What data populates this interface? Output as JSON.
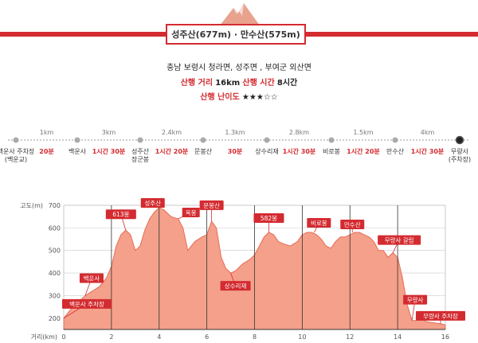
{
  "header": {
    "title": "성주산(677m) · 만수산(575m)",
    "location": "충남 보령시 청라면, 성주면 , 부여군 외산면",
    "distance_label": "산행 거리",
    "distance_value": "16km",
    "time_label": "산행 시간",
    "time_value": "8시간",
    "difficulty_label": "산행 난이도",
    "difficulty_stars": "★★★☆☆"
  },
  "route": {
    "stops": [
      {
        "name": [
          "백운사 주차장",
          "(백운교)"
        ]
      },
      {
        "name": [
          "백운사"
        ]
      },
      {
        "name": [
          "성주산",
          "장군봉"
        ]
      },
      {
        "name": [
          "문봉산"
        ]
      },
      {
        "name": [
          "상수리재"
        ]
      },
      {
        "name": [
          "비로봉"
        ]
      },
      {
        "name": [
          "만수산"
        ]
      },
      {
        "name": [
          "무량사",
          "(주차장)"
        ]
      }
    ],
    "segments": [
      {
        "dist": "1km",
        "time": "20분"
      },
      {
        "dist": "3km",
        "time": "1시간 30분"
      },
      {
        "dist": "2.4km",
        "time": "1시간 20분"
      },
      {
        "dist": "1.3km",
        "time": "30분"
      },
      {
        "dist": "2.8km",
        "time": "1시간 30분"
      },
      {
        "dist": "1.5km",
        "time": "1시간 20분"
      },
      {
        "dist": "4km",
        "time": "1시간 30분"
      }
    ]
  },
  "colors": {
    "accent": "#d32b30",
    "profile_fill": "#f4a08a",
    "profile_stroke": "#e56d56"
  },
  "chart_data": {
    "type": "area",
    "ylabel": "고도(m)",
    "xlabel": "거리(km)",
    "xlim": [
      0,
      16
    ],
    "ylim": [
      150,
      700
    ],
    "xticks": [
      0,
      2,
      4,
      6,
      8,
      10,
      12,
      14,
      16
    ],
    "yticks": [
      200,
      300,
      400,
      500,
      600,
      700
    ],
    "x": [
      0,
      0.3,
      0.6,
      0.9,
      1.2,
      1.5,
      1.8,
      2.0,
      2.2,
      2.4,
      2.6,
      2.8,
      3.0,
      3.2,
      3.4,
      3.6,
      3.8,
      4.0,
      4.2,
      4.5,
      4.8,
      5.0,
      5.2,
      5.5,
      5.8,
      6.0,
      6.2,
      6.4,
      6.6,
      6.8,
      7.0,
      7.2,
      7.5,
      7.8,
      8.0,
      8.2,
      8.4,
      8.6,
      8.8,
      9.0,
      9.2,
      9.5,
      9.8,
      10.0,
      10.2,
      10.4,
      10.6,
      10.8,
      11.0,
      11.2,
      11.4,
      11.6,
      11.8,
      12.0,
      12.2,
      12.4,
      12.6,
      12.8,
      13.0,
      13.2,
      13.4,
      13.6,
      13.8,
      14.0,
      14.2,
      14.4,
      14.6,
      14.8,
      15.0,
      15.2,
      15.5,
      15.8,
      16.0
    ],
    "y": [
      200,
      240,
      270,
      300,
      320,
      340,
      380,
      430,
      520,
      570,
      590,
      570,
      500,
      520,
      590,
      640,
      670,
      690,
      680,
      650,
      640,
      600,
      500,
      540,
      560,
      570,
      630,
      600,
      470,
      420,
      400,
      410,
      440,
      460,
      480,
      520,
      560,
      580,
      570,
      540,
      530,
      520,
      540,
      570,
      580,
      580,
      570,
      550,
      520,
      510,
      540,
      560,
      560,
      570,
      580,
      580,
      570,
      560,
      540,
      500,
      500,
      470,
      490,
      470,
      380,
      260,
      190,
      190,
      200,
      185,
      180,
      175,
      170
    ],
    "annotations": [
      {
        "text": "백운사 주차장",
        "x": 0,
        "y": 200
      },
      {
        "text": "백운사",
        "x": 0.9,
        "y": 300
      },
      {
        "text": "613봉",
        "x": 2.6,
        "y": 590
      },
      {
        "text": "성주산",
        "x": 4.0,
        "y": 690
      },
      {
        "text": "옥봉",
        "x": 4.8,
        "y": 640
      },
      {
        "text": "문봉산",
        "x": 6.2,
        "y": 630
      },
      {
        "text": "상수리재",
        "x": 7.0,
        "y": 400
      },
      {
        "text": "582봉",
        "x": 8.6,
        "y": 580
      },
      {
        "text": "비로봉",
        "x": 10.5,
        "y": 580
      },
      {
        "text": "만수산",
        "x": 12.1,
        "y": 580
      },
      {
        "text": "무량사 갈림",
        "x": 13.8,
        "y": 490
      },
      {
        "text": "무량사",
        "x": 14.6,
        "y": 190
      },
      {
        "text": "무량사 주차장",
        "x": 15.8,
        "y": 175
      }
    ]
  }
}
